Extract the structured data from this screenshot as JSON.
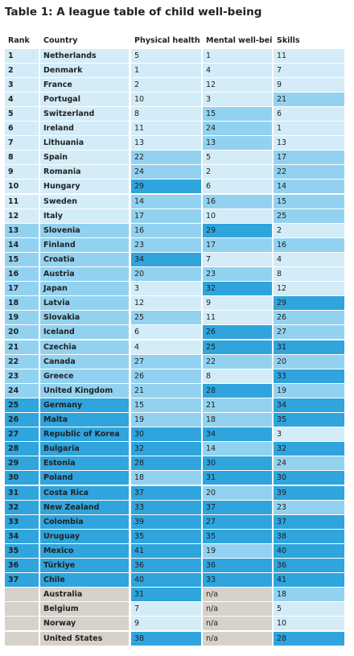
{
  "title": "Table 1: A league table of child well-being",
  "table": {
    "headers": [
      "Rank",
      "Country",
      "Physical health",
      "Mental well-being",
      "Skills"
    ],
    "rows": [
      [
        1,
        "Netherlands",
        5,
        1,
        11
      ],
      [
        2,
        "Denmark",
        1,
        4,
        7
      ],
      [
        3,
        "France",
        2,
        12,
        9
      ],
      [
        4,
        "Portugal",
        10,
        3,
        21
      ],
      [
        5,
        "Switzerland",
        8,
        15,
        6
      ],
      [
        6,
        "Ireland",
        11,
        24,
        1
      ],
      [
        7,
        "Lithuania",
        13,
        13,
        13
      ],
      [
        8,
        "Spain",
        22,
        5,
        17
      ],
      [
        9,
        "Romania",
        24,
        2,
        22
      ],
      [
        10,
        "Hungary",
        29,
        6,
        14
      ],
      [
        11,
        "Sweden",
        14,
        16,
        15
      ],
      [
        12,
        "Italy",
        17,
        10,
        25
      ],
      [
        13,
        "Slovenia",
        16,
        29,
        2
      ],
      [
        14,
        "Finland",
        23,
        17,
        16
      ],
      [
        15,
        "Croatia",
        34,
        7,
        4
      ],
      [
        16,
        "Austria",
        20,
        23,
        8
      ],
      [
        17,
        "Japan",
        3,
        32,
        12
      ],
      [
        18,
        "Latvia",
        12,
        9,
        29
      ],
      [
        19,
        "Slovakia",
        25,
        11,
        26
      ],
      [
        20,
        "Iceland",
        6,
        26,
        27
      ],
      [
        21,
        "Czechia",
        4,
        25,
        31
      ],
      [
        22,
        "Canada",
        27,
        22,
        20
      ],
      [
        23,
        "Greece",
        26,
        8,
        33
      ],
      [
        24,
        "United Kingdom",
        21,
        28,
        19
      ],
      [
        25,
        "Germany",
        15,
        21,
        34
      ],
      [
        26,
        "Malta",
        19,
        18,
        35
      ],
      [
        27,
        "Republic of Korea",
        30,
        34,
        3
      ],
      [
        28,
        "Bulgaria",
        32,
        14,
        32
      ],
      [
        29,
        "Estonia",
        28,
        30,
        24
      ],
      [
        30,
        "Poland",
        18,
        31,
        30
      ],
      [
        31,
        "Costa Rica",
        37,
        20,
        39
      ],
      [
        32,
        "New Zealand",
        33,
        37,
        23
      ],
      [
        33,
        "Colombia",
        39,
        27,
        37
      ],
      [
        34,
        "Uruguay",
        35,
        35,
        38
      ],
      [
        35,
        "Mexico",
        41,
        19,
        40
      ],
      [
        36,
        "Türkiye",
        36,
        36,
        36
      ],
      [
        37,
        "Chile",
        40,
        33,
        41
      ],
      [
        null,
        "Australia",
        31,
        "n/a",
        18
      ],
      [
        null,
        "Belgium",
        7,
        "n/a",
        5
      ],
      [
        null,
        "Norway",
        9,
        "n/a",
        10
      ],
      [
        null,
        "United States",
        38,
        "n/a",
        28
      ]
    ]
  }
}
